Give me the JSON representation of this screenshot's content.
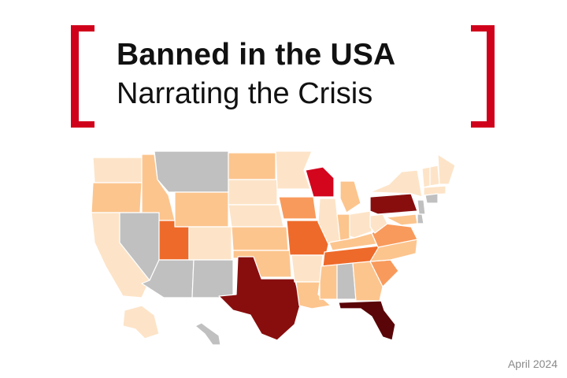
{
  "header": {
    "title": "Banned in the USA",
    "subtitle": "Narrating the Crisis"
  },
  "footer": {
    "date": "April 2024"
  },
  "colors": {
    "bracket": "#d0021b",
    "no_data": "#c0c0c0",
    "lightest": "#fde4c8",
    "light": "#fcc58e",
    "medium": "#f89a5c",
    "orange": "#ee6a2a",
    "red": "#d3061e",
    "dark_red": "#880e0e",
    "darkest": "#5a0508"
  },
  "map": {
    "states": [
      {
        "id": "WA",
        "shade": "lightest"
      },
      {
        "id": "OR",
        "shade": "light"
      },
      {
        "id": "CA",
        "shade": "lightest"
      },
      {
        "id": "ID",
        "shade": "light"
      },
      {
        "id": "NV",
        "shade": "no_data"
      },
      {
        "id": "MT",
        "shade": "no_data"
      },
      {
        "id": "WY",
        "shade": "light"
      },
      {
        "id": "UT",
        "shade": "orange"
      },
      {
        "id": "AZ",
        "shade": "no_data"
      },
      {
        "id": "CO",
        "shade": "lightest"
      },
      {
        "id": "NM",
        "shade": "no_data"
      },
      {
        "id": "ND",
        "shade": "light"
      },
      {
        "id": "SD",
        "shade": "lightest"
      },
      {
        "id": "NE",
        "shade": "lightest"
      },
      {
        "id": "KS",
        "shade": "light"
      },
      {
        "id": "OK",
        "shade": "light"
      },
      {
        "id": "TX",
        "shade": "dark_red"
      },
      {
        "id": "MN",
        "shade": "lightest"
      },
      {
        "id": "IA",
        "shade": "medium"
      },
      {
        "id": "MO",
        "shade": "orange"
      },
      {
        "id": "AR",
        "shade": "lightest"
      },
      {
        "id": "LA",
        "shade": "light"
      },
      {
        "id": "WI",
        "shade": "red"
      },
      {
        "id": "IL",
        "shade": "lightest"
      },
      {
        "id": "MI",
        "shade": "light"
      },
      {
        "id": "IN",
        "shade": "light"
      },
      {
        "id": "OH",
        "shade": "lightest"
      },
      {
        "id": "KY",
        "shade": "light"
      },
      {
        "id": "TN",
        "shade": "orange"
      },
      {
        "id": "MS",
        "shade": "light"
      },
      {
        "id": "AL",
        "shade": "no_data"
      },
      {
        "id": "GA",
        "shade": "light"
      },
      {
        "id": "FL",
        "shade": "darkest"
      },
      {
        "id": "SC",
        "shade": "medium"
      },
      {
        "id": "NC",
        "shade": "light"
      },
      {
        "id": "VA",
        "shade": "medium"
      },
      {
        "id": "WV",
        "shade": "lightest"
      },
      {
        "id": "PA",
        "shade": "dark_red"
      },
      {
        "id": "NY",
        "shade": "lightest"
      },
      {
        "id": "NJ",
        "shade": "no_data"
      },
      {
        "id": "MD",
        "shade": "light"
      },
      {
        "id": "DE",
        "shade": "no_data"
      },
      {
        "id": "VT",
        "shade": "lightest"
      },
      {
        "id": "NH",
        "shade": "lightest"
      },
      {
        "id": "ME",
        "shade": "lightest"
      },
      {
        "id": "MA",
        "shade": "lightest"
      },
      {
        "id": "CT",
        "shade": "no_data"
      },
      {
        "id": "AK",
        "shade": "lightest"
      },
      {
        "id": "HI",
        "shade": "no_data"
      }
    ]
  }
}
